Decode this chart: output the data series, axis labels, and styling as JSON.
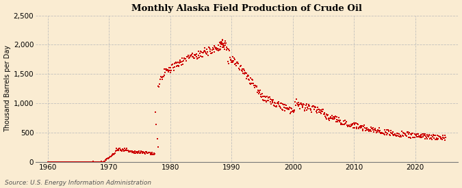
{
  "title": "Monthly Alaska Field Production of Crude Oil",
  "ylabel": "Thousand Barrels per Day",
  "source": "Source: U.S. Energy Information Administration",
  "background_color": "#faecd2",
  "line_color": "#cc0000",
  "ylim": [
    0,
    2500
  ],
  "yticks": [
    0,
    500,
    1000,
    1500,
    2000,
    2500
  ],
  "ytick_labels": [
    "0",
    "500",
    "1,000",
    "1,500",
    "2,000",
    "2,500"
  ],
  "xlim_start": 1958,
  "xlim_end": 2027,
  "xticks": [
    1960,
    1970,
    1980,
    1990,
    2000,
    2010,
    2020
  ]
}
